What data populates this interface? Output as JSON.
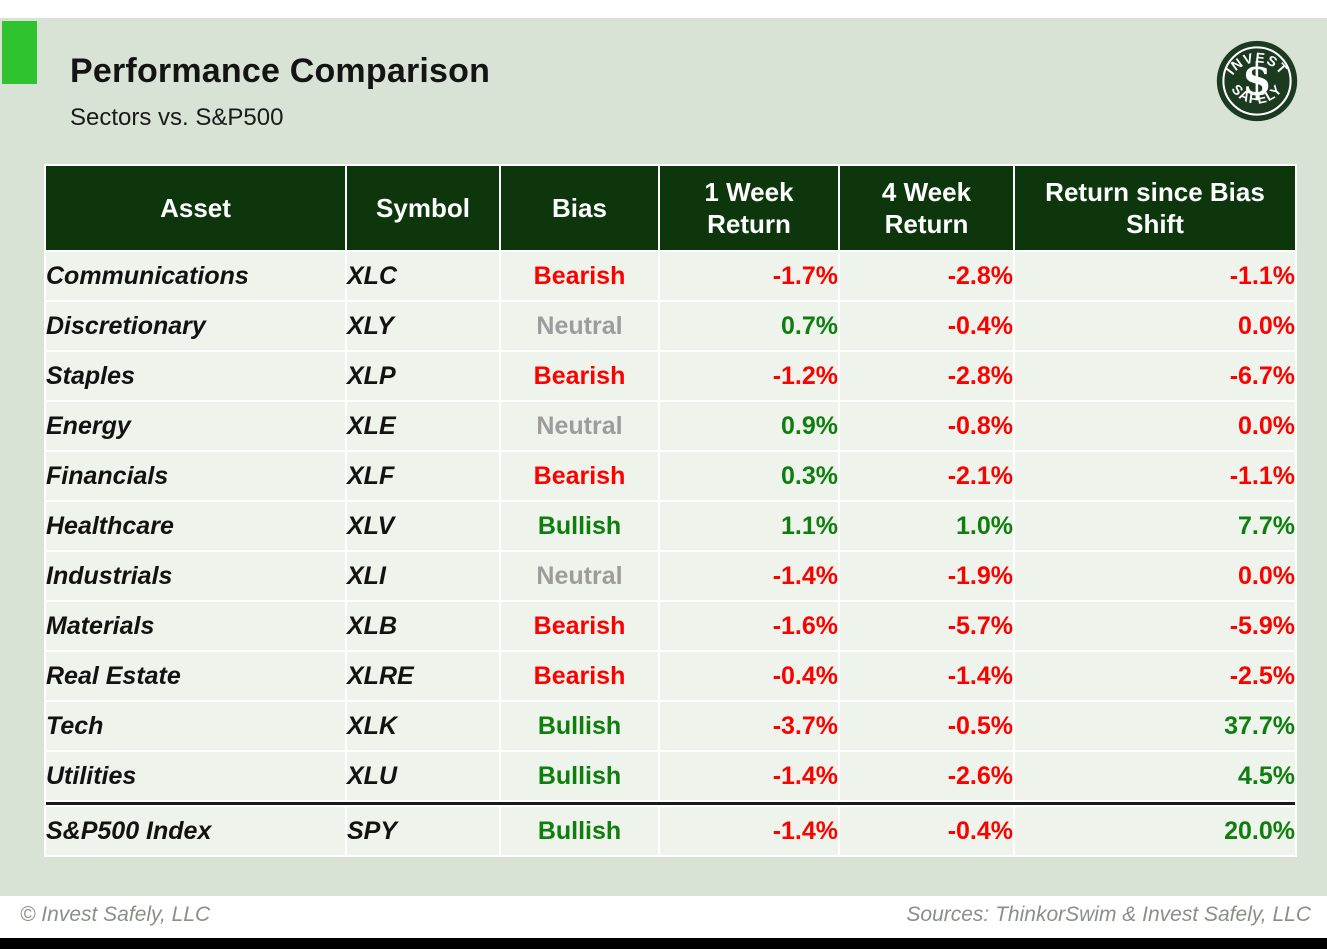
{
  "header": {
    "title": "Performance Comparison",
    "subtitle": "Sectors vs. S&P500",
    "logo": {
      "top_text": "INVEST",
      "bottom_text": "SAFELY",
      "monogram": "$"
    }
  },
  "table": {
    "columns": [
      "Asset",
      "Symbol",
      "Bias",
      "1 Week Return",
      "4 Week Return",
      "Return since Bias Shift"
    ],
    "rows": [
      {
        "asset": "Communications",
        "symbol": "XLC",
        "bias": "Bearish",
        "bias_tone": "red",
        "week1": {
          "text": "-1.7%",
          "tone": "red"
        },
        "week4": {
          "text": "-2.8%",
          "tone": "red"
        },
        "since": {
          "text": "-1.1%",
          "tone": "red"
        },
        "separator_above": false
      },
      {
        "asset": "Discretionary",
        "symbol": "XLY",
        "bias": "Neutral",
        "bias_tone": "gray",
        "week1": {
          "text": "0.7%",
          "tone": "green"
        },
        "week4": {
          "text": "-0.4%",
          "tone": "red"
        },
        "since": {
          "text": "0.0%",
          "tone": "red"
        },
        "separator_above": false
      },
      {
        "asset": "Staples",
        "symbol": "XLP",
        "bias": "Bearish",
        "bias_tone": "red",
        "week1": {
          "text": "-1.2%",
          "tone": "red"
        },
        "week4": {
          "text": "-2.8%",
          "tone": "red"
        },
        "since": {
          "text": "-6.7%",
          "tone": "red"
        },
        "separator_above": false
      },
      {
        "asset": "Energy",
        "symbol": "XLE",
        "bias": "Neutral",
        "bias_tone": "gray",
        "week1": {
          "text": "0.9%",
          "tone": "green"
        },
        "week4": {
          "text": "-0.8%",
          "tone": "red"
        },
        "since": {
          "text": "0.0%",
          "tone": "red"
        },
        "separator_above": false
      },
      {
        "asset": "Financials",
        "symbol": "XLF",
        "bias": "Bearish",
        "bias_tone": "red",
        "week1": {
          "text": "0.3%",
          "tone": "green"
        },
        "week4": {
          "text": "-2.1%",
          "tone": "red"
        },
        "since": {
          "text": "-1.1%",
          "tone": "red"
        },
        "separator_above": false
      },
      {
        "asset": "Healthcare",
        "symbol": "XLV",
        "bias": "Bullish",
        "bias_tone": "green",
        "week1": {
          "text": "1.1%",
          "tone": "green"
        },
        "week4": {
          "text": "1.0%",
          "tone": "green"
        },
        "since": {
          "text": "7.7%",
          "tone": "green"
        },
        "separator_above": false
      },
      {
        "asset": "Industrials",
        "symbol": "XLI",
        "bias": "Neutral",
        "bias_tone": "gray",
        "week1": {
          "text": "-1.4%",
          "tone": "red"
        },
        "week4": {
          "text": "-1.9%",
          "tone": "red"
        },
        "since": {
          "text": "0.0%",
          "tone": "red"
        },
        "separator_above": false
      },
      {
        "asset": "Materials",
        "symbol": "XLB",
        "bias": "Bearish",
        "bias_tone": "red",
        "week1": {
          "text": "-1.6%",
          "tone": "red"
        },
        "week4": {
          "text": "-5.7%",
          "tone": "red"
        },
        "since": {
          "text": "-5.9%",
          "tone": "red"
        },
        "separator_above": false
      },
      {
        "asset": "Real Estate",
        "symbol": "XLRE",
        "bias": "Bearish",
        "bias_tone": "red",
        "week1": {
          "text": "-0.4%",
          "tone": "red"
        },
        "week4": {
          "text": "-1.4%",
          "tone": "red"
        },
        "since": {
          "text": "-2.5%",
          "tone": "red"
        },
        "separator_above": false
      },
      {
        "asset": "Tech",
        "symbol": "XLK",
        "bias": "Bullish",
        "bias_tone": "green",
        "week1": {
          "text": "-3.7%",
          "tone": "red"
        },
        "week4": {
          "text": "-0.5%",
          "tone": "red"
        },
        "since": {
          "text": "37.7%",
          "tone": "green"
        },
        "separator_above": false
      },
      {
        "asset": "Utilities",
        "symbol": "XLU",
        "bias": "Bullish",
        "bias_tone": "green",
        "week1": {
          "text": "-1.4%",
          "tone": "red"
        },
        "week4": {
          "text": "-2.6%",
          "tone": "red"
        },
        "since": {
          "text": "4.5%",
          "tone": "green"
        },
        "separator_above": false
      },
      {
        "asset": "S&P500 Index",
        "symbol": "SPY",
        "bias": "Bullish",
        "bias_tone": "green",
        "week1": {
          "text": "-1.4%",
          "tone": "red"
        },
        "week4": {
          "text": "-0.4%",
          "tone": "red"
        },
        "since": {
          "text": "20.0%",
          "tone": "green"
        },
        "separator_above": true
      }
    ]
  },
  "footer": {
    "left": "© Invest Safely, LLC",
    "right": "Sources: ThinkorSwim & Invest Safely, LLC"
  },
  "colors": {
    "slide_background": "#d8e3d5",
    "row_background": "#eef3eb",
    "header_background": "#0d360d",
    "accent_square": "#2fc42f",
    "negative_red": "#fb0200",
    "positive_green": "#0f7e0f",
    "neutral_gray": "#9c9c9c",
    "logo_green": "#1b3a20"
  },
  "chart_data": {
    "type": "table",
    "title": "Performance Comparison",
    "subtitle": "Sectors vs. S&P500",
    "columns": [
      "Asset",
      "Symbol",
      "Bias",
      "1 Week Return",
      "4 Week Return",
      "Return since Bias Shift"
    ],
    "rows": [
      [
        "Communications",
        "XLC",
        "Bearish",
        -1.7,
        -2.8,
        -1.1
      ],
      [
        "Discretionary",
        "XLY",
        "Neutral",
        0.7,
        -0.4,
        0.0
      ],
      [
        "Staples",
        "XLP",
        "Bearish",
        -1.2,
        -2.8,
        -6.7
      ],
      [
        "Energy",
        "XLE",
        "Neutral",
        0.9,
        -0.8,
        0.0
      ],
      [
        "Financials",
        "XLF",
        "Bearish",
        0.3,
        -2.1,
        -1.1
      ],
      [
        "Healthcare",
        "XLV",
        "Bullish",
        1.1,
        1.0,
        7.7
      ],
      [
        "Industrials",
        "XLI",
        "Neutral",
        -1.4,
        -1.9,
        0.0
      ],
      [
        "Materials",
        "XLB",
        "Bearish",
        -1.6,
        -5.7,
        -5.9
      ],
      [
        "Real Estate",
        "XLRE",
        "Bearish",
        -0.4,
        -1.4,
        -2.5
      ],
      [
        "Tech",
        "XLK",
        "Bullish",
        -3.7,
        -0.5,
        37.7
      ],
      [
        "Utilities",
        "XLU",
        "Bullish",
        -1.4,
        -2.6,
        4.5
      ],
      [
        "S&P500 Index",
        "SPY",
        "Bullish",
        -1.4,
        -0.4,
        20.0
      ]
    ],
    "units": "percent"
  }
}
